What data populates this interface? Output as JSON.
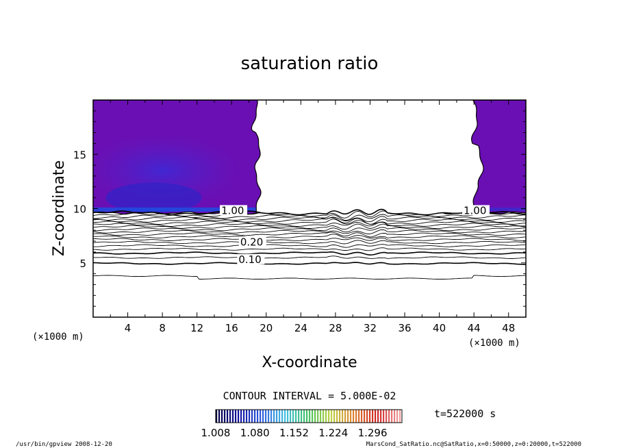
{
  "chart_data": {
    "type": "contour",
    "title": "saturation ratio",
    "xlabel": "X-coordinate",
    "ylabel": "Z-coordinate",
    "x_unit_label_left": "(×1000 m)",
    "x_unit_label_right": "(×1000 m)",
    "xlim": [
      0,
      50
    ],
    "ylim": [
      0,
      20
    ],
    "x_ticks": [
      4,
      8,
      12,
      16,
      20,
      24,
      28,
      32,
      36,
      40,
      44,
      48
    ],
    "y_ticks": [
      5,
      10,
      15
    ],
    "contour_interval_text": "CONTOUR INTERVAL = 5.000E-02",
    "contour_levels": [
      0.05,
      0.1,
      0.15,
      0.2,
      0.25,
      0.3,
      0.35,
      0.4,
      0.45,
      0.5,
      0.55,
      0.6,
      0.65,
      0.7,
      0.75,
      0.8,
      0.85,
      0.9,
      0.95,
      1.0
    ],
    "contour_labels": [
      {
        "text": "0.10",
        "x": 16.8,
        "z": 5.0
      },
      {
        "text": "0.20",
        "x": 17.0,
        "z": 6.6
      },
      {
        "text": "1.00",
        "x": 14.8,
        "z": 9.5
      },
      {
        "text": "1.00",
        "x": 42.8,
        "z": 9.5
      }
    ],
    "supersaturated_regions": [
      {
        "x_range": [
          0,
          19
        ],
        "z_range": [
          9.6,
          20
        ]
      },
      {
        "x_range": [
          40.5,
          50
        ],
        "z_range": [
          9.6,
          20
        ]
      }
    ],
    "colorbar": {
      "ticks": [
        "1.008",
        "1.080",
        "1.152",
        "1.224",
        "1.296"
      ],
      "range": [
        1.008,
        1.35
      ],
      "colors": [
        "#000040",
        "#1010a0",
        "#3060e0",
        "#40c0e0",
        "#40c060",
        "#c0d040",
        "#e08030",
        "#d02020",
        "#f0a0a0"
      ]
    },
    "time_label": "t=522000 s",
    "footer_left": "/usr/bin/gpview  2008-12-20",
    "footer_right": "MarsCond_SatRatio.nc@SatRatio,x=0:50000,z=0:20000,t=522000"
  }
}
